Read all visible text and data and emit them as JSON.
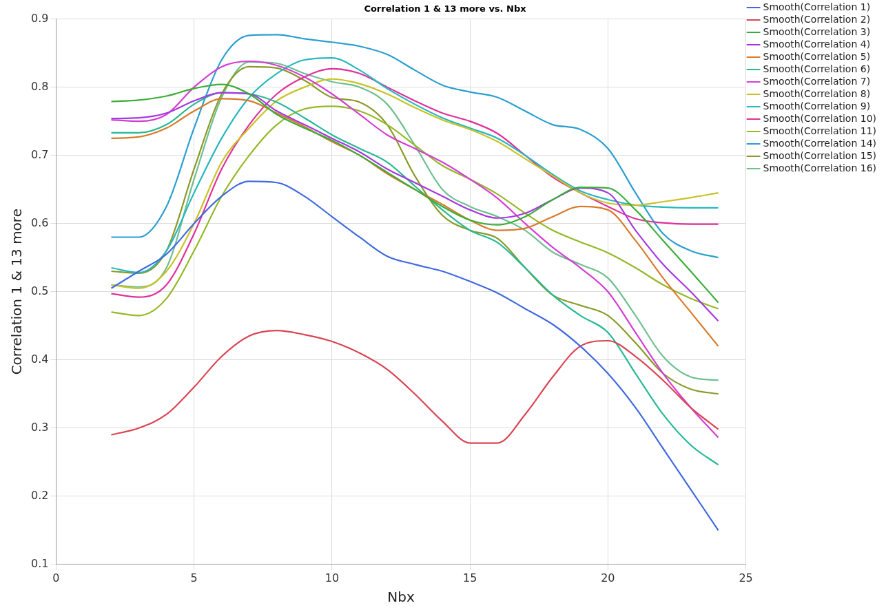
{
  "chart_data": {
    "type": "line",
    "title": "Correlation 1 & 13 more vs. Nbx",
    "xlabel": "Nbx",
    "ylabel": "Correlation 1 & 13 more",
    "x": [
      2,
      3,
      4,
      5,
      6,
      7,
      8,
      9,
      10,
      11,
      12,
      13,
      14,
      15,
      16,
      17,
      18,
      19,
      20,
      21,
      22,
      23,
      24
    ],
    "series": [
      {
        "name": "Smooth(Correlation 1)",
        "color": "#4169e1",
        "values": [
          0.505,
          0.53,
          0.555,
          0.6,
          0.64,
          0.662,
          0.66,
          0.64,
          0.61,
          0.58,
          0.552,
          0.54,
          0.53,
          0.515,
          0.498,
          0.475,
          0.452,
          0.42,
          0.38,
          0.33,
          0.27,
          0.21,
          0.15
        ]
      },
      {
        "name": "Smooth(Correlation 2)",
        "color": "#d94452",
        "values": [
          0.29,
          0.3,
          0.32,
          0.36,
          0.405,
          0.435,
          0.443,
          0.437,
          0.427,
          0.41,
          0.386,
          0.35,
          0.31,
          0.278,
          0.278,
          0.32,
          0.375,
          0.42,
          0.428,
          0.405,
          0.37,
          0.33,
          0.298
        ]
      },
      {
        "name": "Smooth(Correlation 3)",
        "color": "#3aad3a",
        "values": [
          0.779,
          0.781,
          0.787,
          0.798,
          0.804,
          0.79,
          0.76,
          0.74,
          0.722,
          0.7,
          0.675,
          0.65,
          0.625,
          0.605,
          0.598,
          0.61,
          0.635,
          0.653,
          0.652,
          0.62,
          0.575,
          0.53,
          0.484
        ]
      },
      {
        "name": "Smooth(Correlation 4)",
        "color": "#a638e0",
        "values": [
          0.754,
          0.755,
          0.762,
          0.78,
          0.792,
          0.79,
          0.765,
          0.745,
          0.725,
          0.705,
          0.68,
          0.66,
          0.64,
          0.62,
          0.608,
          0.615,
          0.635,
          0.652,
          0.645,
          0.59,
          0.54,
          0.5,
          0.457
        ]
      },
      {
        "name": "Smooth(Correlation 5)",
        "color": "#d97a2a",
        "values": [
          0.725,
          0.727,
          0.74,
          0.765,
          0.783,
          0.78,
          0.762,
          0.742,
          0.72,
          0.7,
          0.673,
          0.65,
          0.628,
          0.605,
          0.59,
          0.593,
          0.61,
          0.625,
          0.62,
          0.575,
          0.52,
          0.47,
          0.42
        ]
      },
      {
        "name": "Smooth(Correlation 6)",
        "color": "#27b995",
        "values": [
          0.733,
          0.733,
          0.745,
          0.775,
          0.792,
          0.79,
          0.778,
          0.755,
          0.73,
          0.71,
          0.69,
          0.655,
          0.62,
          0.59,
          0.572,
          0.535,
          0.495,
          0.465,
          0.44,
          0.38,
          0.32,
          0.275,
          0.246
        ]
      },
      {
        "name": "Smooth(Correlation 7)",
        "color": "#d43ed4",
        "values": [
          0.752,
          0.75,
          0.76,
          0.8,
          0.83,
          0.838,
          0.832,
          0.815,
          0.79,
          0.76,
          0.73,
          0.71,
          0.69,
          0.665,
          0.637,
          0.6,
          0.565,
          0.535,
          0.5,
          0.44,
          0.38,
          0.33,
          0.286
        ]
      },
      {
        "name": "Smooth(Correlation 8)",
        "color": "#c9c226",
        "values": [
          0.51,
          0.505,
          0.53,
          0.6,
          0.69,
          0.74,
          0.78,
          0.8,
          0.812,
          0.805,
          0.79,
          0.77,
          0.752,
          0.738,
          0.72,
          0.695,
          0.67,
          0.645,
          0.63,
          0.627,
          0.632,
          0.638,
          0.645
        ]
      },
      {
        "name": "Smooth(Correlation 9)",
        "color": "#26b8bf",
        "values": [
          0.535,
          0.528,
          0.56,
          0.645,
          0.725,
          0.785,
          0.82,
          0.84,
          0.843,
          0.825,
          0.798,
          0.775,
          0.755,
          0.74,
          0.725,
          0.7,
          0.672,
          0.648,
          0.635,
          0.627,
          0.624,
          0.623,
          0.623
        ]
      },
      {
        "name": "Smooth(Correlation 10)",
        "color": "#e02f9b",
        "values": [
          0.497,
          0.492,
          0.51,
          0.585,
          0.68,
          0.745,
          0.79,
          0.815,
          0.827,
          0.82,
          0.8,
          0.78,
          0.762,
          0.75,
          0.732,
          0.7,
          0.668,
          0.645,
          0.625,
          0.607,
          0.601,
          0.599,
          0.599
        ]
      },
      {
        "name": "Smooth(Correlation 11)",
        "color": "#93b925",
        "values": [
          0.47,
          0.465,
          0.49,
          0.56,
          0.64,
          0.7,
          0.745,
          0.768,
          0.772,
          0.765,
          0.745,
          0.715,
          0.685,
          0.665,
          0.643,
          0.615,
          0.59,
          0.573,
          0.557,
          0.535,
          0.51,
          0.49,
          0.475
        ]
      },
      {
        "name": "Smooth(Correlation 14)",
        "color": "#2a9fcf",
        "values": [
          0.58,
          0.58,
          0.625,
          0.74,
          0.84,
          0.876,
          0.877,
          0.871,
          0.866,
          0.86,
          0.848,
          0.825,
          0.803,
          0.793,
          0.785,
          0.765,
          0.745,
          0.738,
          0.71,
          0.645,
          0.585,
          0.56,
          0.55
        ]
      },
      {
        "name": "Smooth(Correlation 15)",
        "color": "#8a9a28",
        "values": [
          0.53,
          0.527,
          0.56,
          0.68,
          0.79,
          0.83,
          0.828,
          0.81,
          0.785,
          0.778,
          0.745,
          0.67,
          0.612,
          0.59,
          0.578,
          0.535,
          0.495,
          0.48,
          0.465,
          0.425,
          0.38,
          0.357,
          0.35
        ]
      },
      {
        "name": "Smooth(Correlation 16)",
        "color": "#6fbf8f",
        "values": [
          0.51,
          0.507,
          0.535,
          0.665,
          0.785,
          0.837,
          0.835,
          0.82,
          0.808,
          0.8,
          0.775,
          0.715,
          0.65,
          0.625,
          0.61,
          0.59,
          0.558,
          0.54,
          0.52,
          0.465,
          0.405,
          0.375,
          0.37
        ]
      }
    ],
    "xlim": [
      0,
      25
    ],
    "xticks": [
      0,
      5,
      10,
      15,
      20,
      25
    ],
    "ylim": [
      0.1,
      0.9
    ],
    "yticks": [
      0.1,
      0.2,
      0.3,
      0.4,
      0.5,
      0.6,
      0.7,
      0.8,
      0.9
    ],
    "grid": true,
    "legend": "top right",
    "marker": "none",
    "line_style": "solid"
  }
}
